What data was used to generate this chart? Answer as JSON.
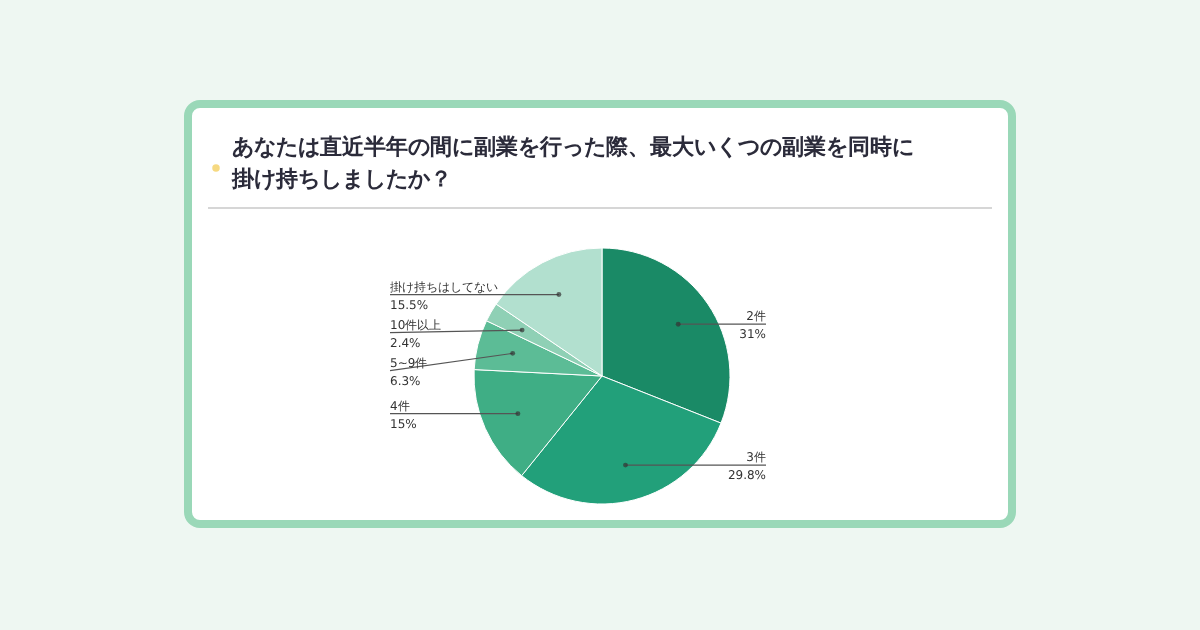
{
  "chart_data": {
    "type": "pie",
    "title": "あなたは直近半年の間に副業を行った際、最大いくつの副業を同時に掛け持ちしましたか？",
    "categories": [
      "2件",
      "3件",
      "4件",
      "5~9件",
      "10件以上",
      "掛け持ちはしてない"
    ],
    "values": [
      31,
      29.8,
      15,
      6.3,
      2.4,
      15.5
    ],
    "value_labels": [
      "31%",
      "29.8%",
      "15%",
      "6.3%",
      "2.4%",
      "15.5%"
    ],
    "colors": [
      "#1a8a66",
      "#22a07a",
      "#3fae85",
      "#5cbc96",
      "#8fd0b5",
      "#b2e0cf"
    ]
  }
}
